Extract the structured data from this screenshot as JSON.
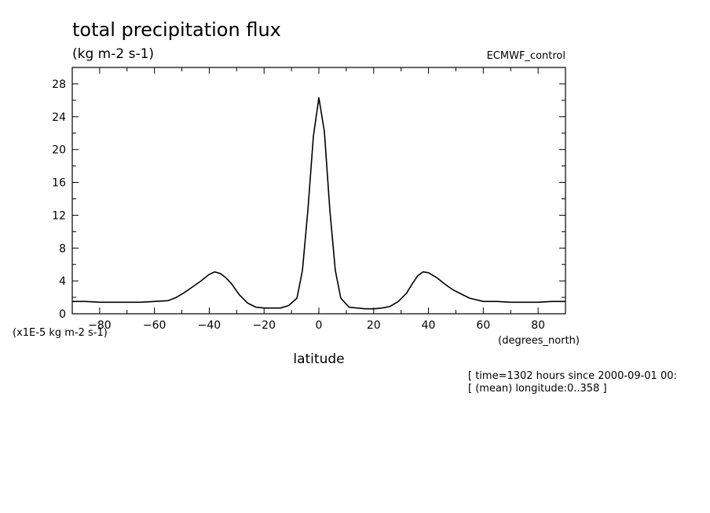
{
  "chart_data": {
    "type": "line",
    "title": "total precipitation flux",
    "subtitle": "(kg m-2 s-1)",
    "experiment": "ECMWF_control",
    "xlabel": "latitude",
    "x_units": "(degrees_north)",
    "y_scale_label": "(x1E-5 kg m-2 s-1)",
    "xlim": [
      -90,
      90
    ],
    "ylim": [
      0,
      30
    ],
    "xticks": [
      -80,
      -60,
      -40,
      -20,
      0,
      20,
      40,
      60,
      80
    ],
    "yticks": [
      0,
      4,
      8,
      12,
      16,
      20,
      24,
      28
    ],
    "grid": false,
    "annotations": [
      "[ time=1302 hours since 2000-09-01 00:",
      "[ (mean) longitude:0..358 ]"
    ],
    "series": [
      {
        "x": [
          -90,
          -85,
          -80,
          -75,
          -70,
          -65,
          -60,
          -55,
          -52,
          -49,
          -46,
          -43,
          -40,
          -38,
          -36,
          -34,
          -32,
          -29,
          -26,
          -23,
          -20,
          -17,
          -14,
          -11,
          -8,
          -6,
          -4,
          -2,
          0,
          2,
          4,
          6,
          8,
          11,
          14,
          17,
          20,
          23,
          26,
          29,
          32,
          34,
          36,
          38,
          40,
          43,
          46,
          49,
          52,
          55,
          60,
          65,
          70,
          75,
          80,
          85,
          90
        ],
        "values": [
          1.5,
          1.5,
          1.4,
          1.4,
          1.4,
          1.4,
          1.5,
          1.6,
          2.0,
          2.6,
          3.3,
          4.0,
          4.8,
          5.1,
          4.9,
          4.4,
          3.7,
          2.3,
          1.3,
          0.8,
          0.7,
          0.7,
          0.7,
          1.0,
          1.9,
          5.3,
          12.6,
          21.6,
          26.3,
          22.2,
          12.6,
          5.3,
          1.9,
          0.8,
          0.7,
          0.6,
          0.6,
          0.7,
          0.9,
          1.5,
          2.5,
          3.6,
          4.6,
          5.1,
          5.0,
          4.4,
          3.6,
          2.9,
          2.4,
          1.9,
          1.5,
          1.5,
          1.4,
          1.4,
          1.4,
          1.5,
          1.5
        ]
      }
    ]
  }
}
